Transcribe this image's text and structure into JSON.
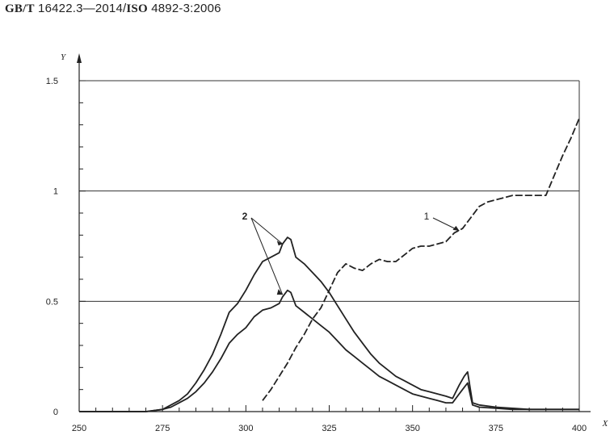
{
  "header": {
    "standard_prefix": "GB/T",
    "standard_number": "16422.3—2014/",
    "iso_prefix": "ISO",
    "iso_number": "4892-3:2006"
  },
  "chart_data": {
    "type": "line",
    "title": "",
    "xlabel": "X",
    "ylabel": "Y",
    "xlim": [
      250,
      400
    ],
    "ylim": [
      0,
      1.5
    ],
    "x_ticks": [
      250,
      275,
      300,
      325,
      350,
      375,
      400
    ],
    "y_ticks": [
      0,
      0.5,
      1,
      1.5
    ],
    "x_tick_labels": [
      "250",
      "275",
      "300",
      "325",
      "350",
      "375",
      "400"
    ],
    "y_tick_labels": [
      "0",
      "0.5",
      "1",
      "1.5"
    ],
    "grid": "horizontal at 0.5, 1, 1.5",
    "legend": "none",
    "annotations": [
      {
        "text": "1",
        "target_series": 0
      },
      {
        "text": "2",
        "target_series": [
          1,
          2
        ]
      }
    ],
    "series": [
      {
        "id": "1",
        "style": "dashed",
        "x": [
          305,
          307.5,
          310,
          312.5,
          315,
          317.5,
          320,
          322.5,
          325,
          327.5,
          330,
          332.5,
          335,
          337.5,
          340,
          342.5,
          345,
          347.5,
          350,
          352.5,
          355,
          357.5,
          360,
          362.5,
          365,
          367.5,
          370,
          372.5,
          375,
          377.5,
          380,
          382.5,
          385,
          387.5,
          390,
          392.5,
          395,
          397.5,
          400
        ],
        "y": [
          0.05,
          0.1,
          0.16,
          0.22,
          0.29,
          0.35,
          0.42,
          0.47,
          0.55,
          0.63,
          0.67,
          0.65,
          0.64,
          0.67,
          0.69,
          0.68,
          0.68,
          0.71,
          0.74,
          0.75,
          0.75,
          0.76,
          0.77,
          0.81,
          0.83,
          0.88,
          0.93,
          0.95,
          0.96,
          0.97,
          0.98,
          0.98,
          0.98,
          0.98,
          0.98,
          1.07,
          1.16,
          1.24,
          1.33
        ]
      },
      {
        "id": "2 (upper)",
        "style": "solid",
        "x": [
          250,
          255,
          260,
          265,
          270,
          275,
          277.5,
          280,
          282.5,
          285,
          287.5,
          290,
          292.5,
          295,
          297.5,
          300,
          302.5,
          305,
          307.5,
          310,
          311,
          312.5,
          313.5,
          315,
          317.5,
          320,
          322.5,
          325,
          327.5,
          330,
          332.5,
          335,
          337.5,
          340,
          342.5,
          345,
          347.5,
          350,
          352.5,
          355,
          357.5,
          360,
          362,
          364,
          365.5,
          366.5,
          368,
          370,
          375,
          380,
          385,
          390,
          395,
          400
        ],
        "y": [
          0,
          0,
          0,
          0,
          0,
          0.01,
          0.03,
          0.05,
          0.08,
          0.13,
          0.19,
          0.26,
          0.35,
          0.45,
          0.49,
          0.55,
          0.62,
          0.68,
          0.7,
          0.72,
          0.76,
          0.79,
          0.78,
          0.7,
          0.67,
          0.63,
          0.59,
          0.54,
          0.48,
          0.42,
          0.36,
          0.31,
          0.26,
          0.22,
          0.19,
          0.16,
          0.14,
          0.12,
          0.1,
          0.09,
          0.08,
          0.07,
          0.06,
          0.12,
          0.16,
          0.18,
          0.04,
          0.03,
          0.02,
          0.015,
          0.01,
          0.01,
          0.01,
          0.01
        ]
      },
      {
        "id": "2 (lower)",
        "style": "solid",
        "x": [
          250,
          255,
          260,
          265,
          270,
          275,
          277.5,
          280,
          282.5,
          285,
          287.5,
          290,
          292.5,
          295,
          297.5,
          300,
          302.5,
          305,
          307.5,
          310,
          311,
          312.5,
          313.5,
          315,
          317.5,
          320,
          322.5,
          325,
          327.5,
          330,
          332.5,
          335,
          337.5,
          340,
          342.5,
          345,
          347.5,
          350,
          352.5,
          355,
          357.5,
          360,
          362,
          364,
          365.5,
          366.5,
          368,
          370,
          375,
          380,
          385,
          390,
          395,
          400
        ],
        "y": [
          0,
          0,
          0,
          0,
          0,
          0.01,
          0.02,
          0.04,
          0.06,
          0.09,
          0.13,
          0.18,
          0.24,
          0.31,
          0.35,
          0.38,
          0.43,
          0.46,
          0.47,
          0.49,
          0.52,
          0.55,
          0.54,
          0.48,
          0.45,
          0.42,
          0.39,
          0.36,
          0.32,
          0.28,
          0.25,
          0.22,
          0.19,
          0.16,
          0.14,
          0.12,
          0.1,
          0.08,
          0.07,
          0.06,
          0.05,
          0.04,
          0.04,
          0.08,
          0.11,
          0.13,
          0.03,
          0.02,
          0.015,
          0.01,
          0.01,
          0.01,
          0.01,
          0.01
        ]
      }
    ]
  }
}
